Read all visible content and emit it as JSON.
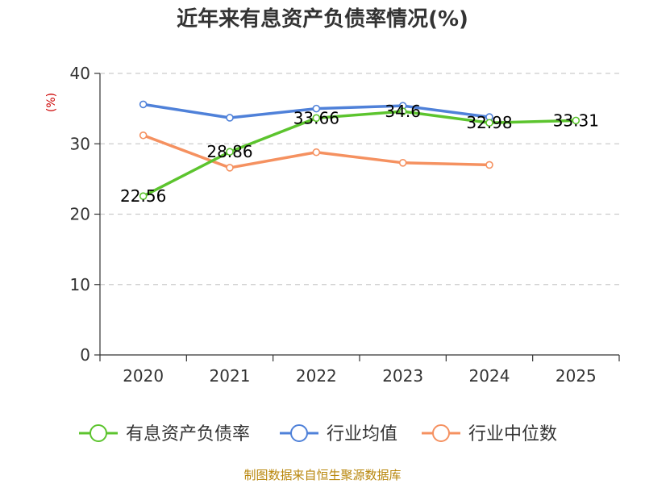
{
  "chart_data": {
    "type": "line",
    "title": "近年来有息资产负债率情况(%)",
    "ylabel": "(%)",
    "xlabel": "",
    "categories": [
      "2020",
      "2021",
      "2022",
      "2023",
      "2024",
      "2025"
    ],
    "ylim": [
      0,
      40
    ],
    "yticks": [
      0,
      10,
      20,
      30,
      40
    ],
    "grid": true,
    "legend_position": "bottom",
    "series": [
      {
        "name": "有息资产负债率",
        "color": "#5cc42e",
        "values": [
          22.56,
          28.86,
          33.66,
          34.6,
          32.98,
          33.31
        ],
        "labels": [
          "22.56",
          "28.86",
          "33.66",
          "34.6",
          "32.98",
          "33.31"
        ]
      },
      {
        "name": "行业均值",
        "color": "#4f81d9",
        "values": [
          35.6,
          33.7,
          35.0,
          35.4,
          33.8,
          null
        ]
      },
      {
        "name": "行业中位数",
        "color": "#f59160",
        "values": [
          31.2,
          26.6,
          28.8,
          27.3,
          27.0,
          null
        ]
      }
    ]
  },
  "footer": {
    "source": "制图数据来自恒生聚源数据库"
  }
}
